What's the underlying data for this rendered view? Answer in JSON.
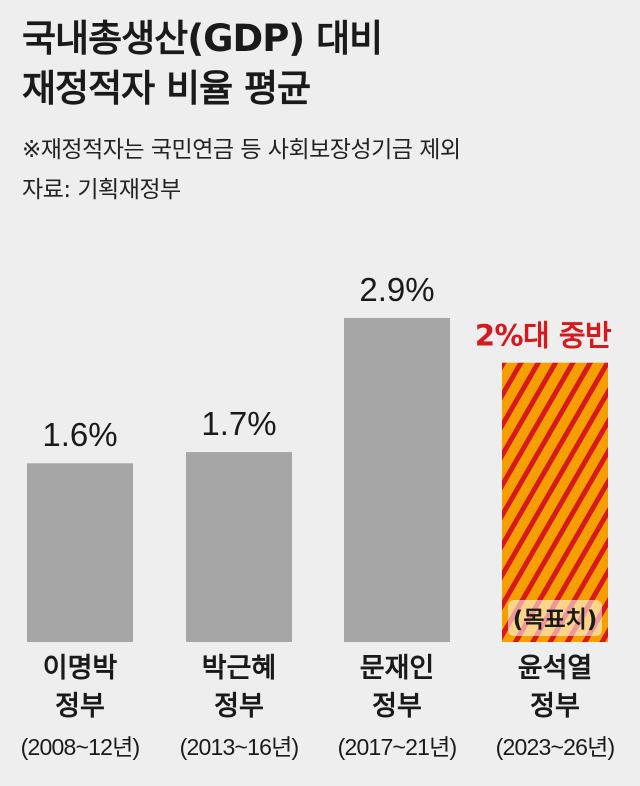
{
  "title_lines": [
    "국내총생산(GDP) 대비",
    "재정적자 비율 평균"
  ],
  "note_lines": [
    "※재정적자는 국민연금 등 사회보장성기금 제외",
    "자료: 기획재정부"
  ],
  "colors": {
    "bar": "#a6a6a6",
    "stripe_red": "#d7191d",
    "stripe_orange": "#f5a000",
    "highlight_text": "#d7191d"
  },
  "chart_data": {
    "type": "bar",
    "categories": [
      {
        "name": "이명박",
        "suffix": "정부",
        "period": "(2008~12년)"
      },
      {
        "name": "박근혜",
        "suffix": "정부",
        "period": "(2013~16년)"
      },
      {
        "name": "문재인",
        "suffix": "정부",
        "period": "(2017~21년)"
      },
      {
        "name": "윤석열",
        "suffix": "정부",
        "period": "(2023~26년)"
      }
    ],
    "values": [
      1.6,
      1.7,
      2.9,
      2.5
    ],
    "value_labels": [
      "1.6%",
      "1.7%",
      "2.9%",
      "2%대 중반"
    ],
    "highlight_index": 3,
    "highlight_style": "striped",
    "highlight_tag": "(목표치)",
    "ylim": [
      0,
      3.5
    ],
    "grid": false,
    "legend": "none"
  }
}
